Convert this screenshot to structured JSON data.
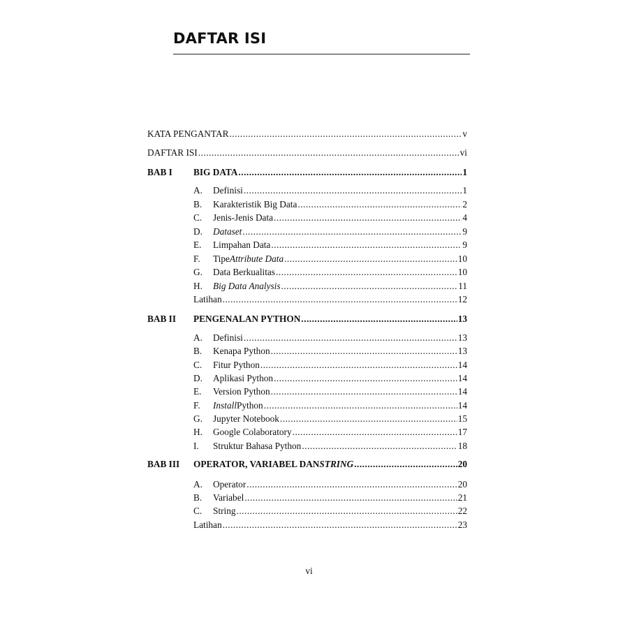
{
  "heading": "DAFTAR ISI",
  "page_number": "vi",
  "entries": [
    {
      "level": "front",
      "title": [
        {
          "text": "KATA PENGANTAR"
        }
      ],
      "page": "v"
    },
    {
      "level": "front",
      "title": [
        {
          "text": "DAFTAR ISI"
        }
      ],
      "page": "vi"
    },
    {
      "level": "chapter",
      "chapter": "BAB I",
      "title": [
        {
          "text": "BIG DATA"
        }
      ],
      "page": "1"
    },
    {
      "level": "section",
      "letter": "A.",
      "title": [
        {
          "text": "Definisi"
        }
      ],
      "page": "1"
    },
    {
      "level": "section",
      "letter": "B.",
      "title": [
        {
          "text": "Karakteristik Big Data"
        }
      ],
      "page": "2"
    },
    {
      "level": "section",
      "letter": "C.",
      "title": [
        {
          "text": "Jenis-Jenis Data"
        }
      ],
      "page": "4"
    },
    {
      "level": "section",
      "letter": "D.",
      "title": [
        {
          "text": "Dataset",
          "italic": true
        }
      ],
      "page": "9"
    },
    {
      "level": "section",
      "letter": "E.",
      "title": [
        {
          "text": "Limpahan Data"
        }
      ],
      "page": "9"
    },
    {
      "level": "section",
      "letter": "F.",
      "title": [
        {
          "text": "Tipe "
        },
        {
          "text": "Attribute Data",
          "italic": true
        }
      ],
      "page": "10"
    },
    {
      "level": "section",
      "letter": "G.",
      "title": [
        {
          "text": "Data Berkualitas"
        }
      ],
      "page": "10"
    },
    {
      "level": "section",
      "letter": "H.",
      "title": [
        {
          "text": "Big Data Analysis",
          "italic": true
        }
      ],
      "page": "11"
    },
    {
      "level": "exercise",
      "title": [
        {
          "text": "Latihan"
        }
      ],
      "page": "12"
    },
    {
      "level": "chapter",
      "chapter": "BAB II",
      "title": [
        {
          "text": "PENGENALAN PYTHON"
        }
      ],
      "page": "13"
    },
    {
      "level": "section",
      "letter": "A.",
      "title": [
        {
          "text": "Definisi"
        }
      ],
      "page": "13"
    },
    {
      "level": "section",
      "letter": "B.",
      "title": [
        {
          "text": "Kenapa Python"
        }
      ],
      "page": "13"
    },
    {
      "level": "section",
      "letter": "C.",
      "title": [
        {
          "text": "Fitur Python"
        }
      ],
      "page": "14"
    },
    {
      "level": "section",
      "letter": "D.",
      "title": [
        {
          "text": "Aplikasi Python"
        }
      ],
      "page": "14"
    },
    {
      "level": "section",
      "letter": "E.",
      "title": [
        {
          "text": "Version Python"
        }
      ],
      "page": "14"
    },
    {
      "level": "section",
      "letter": "F.",
      "title": [
        {
          "text": "Install",
          "italic": true
        },
        {
          "text": " Python"
        }
      ],
      "page": "14"
    },
    {
      "level": "section",
      "letter": "G.",
      "title": [
        {
          "text": "Jupyter Notebook"
        }
      ],
      "page": "15"
    },
    {
      "level": "section",
      "letter": "H.",
      "title": [
        {
          "text": "Google Colaboratory"
        }
      ],
      "page": "17"
    },
    {
      "level": "section",
      "letter": "I.",
      "title": [
        {
          "text": "Struktur Bahasa Python"
        }
      ],
      "page": "18"
    },
    {
      "level": "chapter",
      "chapter": "BAB III",
      "title": [
        {
          "text": "OPERATOR, VARIABEL DAN "
        },
        {
          "text": "STRING",
          "italic": true
        }
      ],
      "page": "20"
    },
    {
      "level": "section",
      "letter": "A.",
      "title": [
        {
          "text": "Operator"
        }
      ],
      "page": "20"
    },
    {
      "level": "section",
      "letter": "B.",
      "title": [
        {
          "text": "Variabel"
        }
      ],
      "page": "21"
    },
    {
      "level": "section",
      "letter": "C.",
      "title": [
        {
          "text": "String"
        }
      ],
      "page": "22"
    },
    {
      "level": "exercise",
      "title": [
        {
          "text": "Latihan"
        }
      ],
      "page": "23"
    }
  ]
}
